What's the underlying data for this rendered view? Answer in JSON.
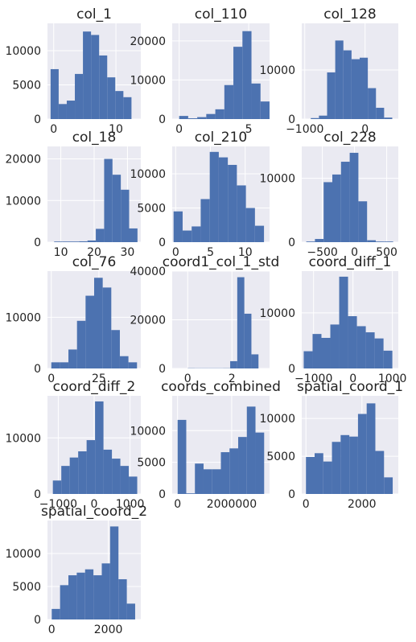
{
  "chart_data": [
    {
      "type": "bar",
      "title": "col_1",
      "x_range": [
        -1,
        14
      ],
      "ylim": [
        0,
        14000
      ],
      "xticks": [
        {
          "value": 0,
          "label": "0"
        },
        {
          "value": 10,
          "label": "10"
        }
      ],
      "yticks": [
        {
          "value": 0,
          "label": "0"
        },
        {
          "value": 5000,
          "label": "5000"
        },
        {
          "value": 10000,
          "label": "10000"
        }
      ],
      "bins": [
        {
          "x0": -0.5,
          "x1": 0.8,
          "count": 7300
        },
        {
          "x0": 0.8,
          "x1": 2.1,
          "count": 2200
        },
        {
          "x0": 2.1,
          "x1": 3.4,
          "count": 2700
        },
        {
          "x0": 3.4,
          "x1": 4.7,
          "count": 6600
        },
        {
          "x0": 4.7,
          "x1": 6.0,
          "count": 12800
        },
        {
          "x0": 6.0,
          "x1": 7.3,
          "count": 12300
        },
        {
          "x0": 7.3,
          "x1": 8.6,
          "count": 9300
        },
        {
          "x0": 8.6,
          "x1": 9.9,
          "count": 6100
        },
        {
          "x0": 9.9,
          "x1": 11.2,
          "count": 4100
        },
        {
          "x0": 11.2,
          "x1": 12.5,
          "count": 3200
        }
      ]
    },
    {
      "type": "bar",
      "title": "col_110",
      "x_range": [
        -0.5,
        6.5
      ],
      "ylim": [
        0,
        24500
      ],
      "xticks": [
        {
          "value": 0,
          "label": "0"
        },
        {
          "value": 5,
          "label": "5"
        }
      ],
      "yticks": [
        {
          "value": 0,
          "label": "0"
        },
        {
          "value": 10000,
          "label": "10000"
        },
        {
          "value": 20000,
          "label": "20000"
        }
      ],
      "bins": [
        {
          "x0": 0,
          "x1": 0.65,
          "count": 800
        },
        {
          "x0": 0.65,
          "x1": 1.3,
          "count": 200
        },
        {
          "x0": 1.3,
          "x1": 1.95,
          "count": 500
        },
        {
          "x0": 1.95,
          "x1": 2.6,
          "count": 1300
        },
        {
          "x0": 2.6,
          "x1": 3.25,
          "count": 2500
        },
        {
          "x0": 3.25,
          "x1": 3.9,
          "count": 8700
        },
        {
          "x0": 3.9,
          "x1": 4.55,
          "count": 18500
        },
        {
          "x0": 4.55,
          "x1": 5.2,
          "count": 22500
        },
        {
          "x0": 5.2,
          "x1": 5.85,
          "count": 9100
        },
        {
          "x0": 5.85,
          "x1": 6.5,
          "count": 4500
        }
      ]
    },
    {
      "type": "bar",
      "title": "col_128",
      "x_range": [
        -1050,
        550
      ],
      "ylim": [
        0,
        19500
      ],
      "xticks": [
        {
          "value": -1000,
          "label": "−1000"
        },
        {
          "value": 0,
          "label": "0"
        }
      ],
      "yticks": [
        {
          "value": 0,
          "label": "0"
        },
        {
          "value": 10000,
          "label": "10000"
        }
      ],
      "bins": [
        {
          "x0": -900,
          "x1": -765,
          "count": 200
        },
        {
          "x0": -765,
          "x1": -630,
          "count": 700
        },
        {
          "x0": -630,
          "x1": -495,
          "count": 9500
        },
        {
          "x0": -495,
          "x1": -360,
          "count": 16000
        },
        {
          "x0": -360,
          "x1": -225,
          "count": 14000
        },
        {
          "x0": -225,
          "x1": -90,
          "count": 12200
        },
        {
          "x0": -90,
          "x1": 45,
          "count": 12500
        },
        {
          "x0": 45,
          "x1": 180,
          "count": 6300
        },
        {
          "x0": 180,
          "x1": 315,
          "count": 2300
        },
        {
          "x0": 315,
          "x1": 450,
          "count": 300
        }
      ]
    },
    {
      "type": "bar",
      "title": "col_18",
      "x_range": [
        6,
        34
      ],
      "ylim": [
        0,
        23000
      ],
      "xticks": [
        {
          "value": 10,
          "label": "10"
        },
        {
          "value": 20,
          "label": "20"
        },
        {
          "value": 30,
          "label": "30"
        }
      ],
      "yticks": [
        {
          "value": 0,
          "label": "0"
        },
        {
          "value": 10000,
          "label": "10000"
        },
        {
          "value": 20000,
          "label": "20000"
        }
      ],
      "bins": [
        {
          "x0": 8,
          "x1": 10.5,
          "count": 150
        },
        {
          "x0": 10.5,
          "x1": 13,
          "count": 150
        },
        {
          "x0": 13,
          "x1": 15.5,
          "count": 150
        },
        {
          "x0": 15.5,
          "x1": 18,
          "count": 200
        },
        {
          "x0": 18,
          "x1": 20.5,
          "count": 400
        },
        {
          "x0": 20.5,
          "x1": 23,
          "count": 3200
        },
        {
          "x0": 23,
          "x1": 25.5,
          "count": 20000
        },
        {
          "x0": 25.5,
          "x1": 28,
          "count": 16200
        },
        {
          "x0": 28,
          "x1": 30.5,
          "count": 12600
        },
        {
          "x0": 30.5,
          "x1": 33,
          "count": 3300
        }
      ]
    },
    {
      "type": "bar",
      "title": "col_210",
      "x_range": [
        -0.5,
        13.5
      ],
      "ylim": [
        0,
        14000
      ],
      "xticks": [
        {
          "value": 0,
          "label": "0"
        },
        {
          "value": 5,
          "label": "5"
        },
        {
          "value": 10,
          "label": "10"
        }
      ],
      "yticks": [
        {
          "value": 0,
          "label": "0"
        },
        {
          "value": 5000,
          "label": "5000"
        },
        {
          "value": 10000,
          "label": "10000"
        }
      ],
      "bins": [
        {
          "x0": -0.3,
          "x1": 1,
          "count": 4500
        },
        {
          "x0": 1,
          "x1": 2.3,
          "count": 1700
        },
        {
          "x0": 2.3,
          "x1": 3.6,
          "count": 2300
        },
        {
          "x0": 3.6,
          "x1": 4.9,
          "count": 6300
        },
        {
          "x0": 4.9,
          "x1": 6.2,
          "count": 13200
        },
        {
          "x0": 6.2,
          "x1": 7.5,
          "count": 12400
        },
        {
          "x0": 7.5,
          "x1": 8.8,
          "count": 11300
        },
        {
          "x0": 8.8,
          "x1": 10.1,
          "count": 8300
        },
        {
          "x0": 10.1,
          "x1": 11.4,
          "count": 5000
        },
        {
          "x0": 11.4,
          "x1": 12.7,
          "count": 2400
        }
      ]
    },
    {
      "type": "bar",
      "title": "col_228",
      "x_range": [
        -820,
        680
      ],
      "ylim": [
        0,
        15000
      ],
      "xticks": [
        {
          "value": -500,
          "label": "−500"
        },
        {
          "value": 0,
          "label": "0"
        },
        {
          "value": 500,
          "label": "500"
        }
      ],
      "yticks": [
        {
          "value": 0,
          "label": "0"
        },
        {
          "value": 10000,
          "label": "10000"
        }
      ],
      "bins": [
        {
          "x0": -750,
          "x1": -615,
          "count": 100
        },
        {
          "x0": -615,
          "x1": -480,
          "count": 500
        },
        {
          "x0": -480,
          "x1": -345,
          "count": 9400
        },
        {
          "x0": -345,
          "x1": -210,
          "count": 10600
        },
        {
          "x0": -210,
          "x1": -75,
          "count": 12600
        },
        {
          "x0": -75,
          "x1": 60,
          "count": 14000
        },
        {
          "x0": 60,
          "x1": 195,
          "count": 6400
        },
        {
          "x0": 195,
          "x1": 330,
          "count": 300
        },
        {
          "x0": 330,
          "x1": 465,
          "count": 100
        },
        {
          "x0": 465,
          "x1": 600,
          "count": 100
        }
      ]
    },
    {
      "type": "bar",
      "title": "col_76",
      "x_range": [
        -2,
        47
      ],
      "ylim": [
        0,
        19000
      ],
      "xticks": [
        {
          "value": 0,
          "label": "0"
        },
        {
          "value": 25,
          "label": "25"
        }
      ],
      "yticks": [
        {
          "value": 0,
          "label": "0"
        },
        {
          "value": 10000,
          "label": "10000"
        }
      ],
      "bins": [
        {
          "x0": 0,
          "x1": 4.5,
          "count": 1200
        },
        {
          "x0": 4.5,
          "x1": 9,
          "count": 1200
        },
        {
          "x0": 9,
          "x1": 13.5,
          "count": 3700
        },
        {
          "x0": 13.5,
          "x1": 18,
          "count": 9300
        },
        {
          "x0": 18,
          "x1": 22.5,
          "count": 14200
        },
        {
          "x0": 22.5,
          "x1": 27,
          "count": 17700
        },
        {
          "x0": 27,
          "x1": 31.5,
          "count": 15800
        },
        {
          "x0": 31.5,
          "x1": 36,
          "count": 7500
        },
        {
          "x0": 36,
          "x1": 40.5,
          "count": 2400
        },
        {
          "x0": 40.5,
          "x1": 45,
          "count": 1200
        }
      ]
    },
    {
      "type": "bar",
      "title": "coord1_col_1_std",
      "x_range": [
        -0.7,
        3.7
      ],
      "ylim": [
        0,
        40000
      ],
      "xticks": [
        {
          "value": 0,
          "label": "0"
        },
        {
          "value": 2,
          "label": "2"
        }
      ],
      "yticks": [
        {
          "value": 0,
          "label": "0"
        },
        {
          "value": 20000,
          "label": "20000"
        },
        {
          "value": 40000,
          "label": "40000"
        }
      ],
      "bins": [
        {
          "x0": 0,
          "x1": 0.32,
          "count": 100
        },
        {
          "x0": 0.32,
          "x1": 0.64,
          "count": 80
        },
        {
          "x0": 0.64,
          "x1": 0.96,
          "count": 80
        },
        {
          "x0": 0.96,
          "x1": 1.28,
          "count": 80
        },
        {
          "x0": 1.28,
          "x1": 1.6,
          "count": 80
        },
        {
          "x0": 1.6,
          "x1": 1.92,
          "count": 100
        },
        {
          "x0": 1.92,
          "x1": 2.24,
          "count": 3000
        },
        {
          "x0": 2.24,
          "x1": 2.56,
          "count": 37500
        },
        {
          "x0": 2.56,
          "x1": 2.88,
          "count": 22500
        },
        {
          "x0": 2.88,
          "x1": 3.2,
          "count": 5800
        }
      ]
    },
    {
      "type": "bar",
      "title": "coord_diff_1",
      "x_range": [
        -1300,
        1150
      ],
      "ylim": [
        0,
        17500
      ],
      "xticks": [
        {
          "value": -1000,
          "label": "−1000"
        },
        {
          "value": 0,
          "label": "0"
        },
        {
          "value": 1000,
          "label": "1000"
        }
      ],
      "yticks": [
        {
          "value": 0,
          "label": "0"
        },
        {
          "value": 10000,
          "label": "10000"
        }
      ],
      "bins": [
        {
          "x0": -1250,
          "x1": -1025,
          "count": 3100
        },
        {
          "x0": -1025,
          "x1": -800,
          "count": 6200
        },
        {
          "x0": -800,
          "x1": -575,
          "count": 5500
        },
        {
          "x0": -575,
          "x1": -350,
          "count": 7900
        },
        {
          "x0": -350,
          "x1": -125,
          "count": 16500
        },
        {
          "x0": -125,
          "x1": 100,
          "count": 9400
        },
        {
          "x0": 100,
          "x1": 325,
          "count": 7600
        },
        {
          "x0": 325,
          "x1": 550,
          "count": 6500
        },
        {
          "x0": 550,
          "x1": 775,
          "count": 5400
        },
        {
          "x0": 775,
          "x1": 1000,
          "count": 3200
        }
      ]
    },
    {
      "type": "bar",
      "title": "coord_diff_2",
      "x_range": [
        -1300,
        1300
      ],
      "ylim": [
        0,
        17500
      ],
      "xticks": [
        {
          "value": -1000,
          "label": "−1000"
        },
        {
          "value": 0,
          "label": "0"
        },
        {
          "value": 1000,
          "label": "1000"
        }
      ],
      "yticks": [
        {
          "value": 0,
          "label": "0"
        },
        {
          "value": 10000,
          "label": "10000"
        }
      ],
      "bins": [
        {
          "x0": -1150,
          "x1": -915,
          "count": 2400
        },
        {
          "x0": -915,
          "x1": -680,
          "count": 5000
        },
        {
          "x0": -680,
          "x1": -445,
          "count": 6500
        },
        {
          "x0": -445,
          "x1": -210,
          "count": 7600
        },
        {
          "x0": -210,
          "x1": 25,
          "count": 9600
        },
        {
          "x0": 25,
          "x1": 260,
          "count": 16500
        },
        {
          "x0": 260,
          "x1": 495,
          "count": 7900
        },
        {
          "x0": 495,
          "x1": 730,
          "count": 6300
        },
        {
          "x0": 730,
          "x1": 965,
          "count": 5000
        },
        {
          "x0": 965,
          "x1": 1200,
          "count": 3100
        }
      ]
    },
    {
      "type": "bar",
      "title": "coords_combined",
      "x_range": [
        -200000,
        3400000
      ],
      "ylim": [
        0,
        15500
      ],
      "xticks": [
        {
          "value": 0,
          "label": "0"
        },
        {
          "value": 2000000,
          "label": "2000000"
        }
      ],
      "yticks": [
        {
          "value": 0,
          "label": "0"
        },
        {
          "value": 5000,
          "label": "5000"
        },
        {
          "value": 10000,
          "label": "10000"
        }
      ],
      "bins": [
        {
          "x0": 0,
          "x1": 320000,
          "count": 11700
        },
        {
          "x0": 320000,
          "x1": 640000,
          "count": 100
        },
        {
          "x0": 640000,
          "x1": 960000,
          "count": 4800
        },
        {
          "x0": 960000,
          "x1": 1280000,
          "count": 3900
        },
        {
          "x0": 1280000,
          "x1": 1600000,
          "count": 3900
        },
        {
          "x0": 1600000,
          "x1": 1920000,
          "count": 6600
        },
        {
          "x0": 1920000,
          "x1": 2240000,
          "count": 7200
        },
        {
          "x0": 2240000,
          "x1": 2560000,
          "count": 9000
        },
        {
          "x0": 2560000,
          "x1": 2880000,
          "count": 13800
        },
        {
          "x0": 2880000,
          "x1": 3200000,
          "count": 9700
        }
      ]
    },
    {
      "type": "bar",
      "title": "spatial_coord_1",
      "x_range": [
        -150,
        3300
      ],
      "ylim": [
        0,
        13000
      ],
      "xticks": [
        {
          "value": 0,
          "label": "0"
        },
        {
          "value": 2000,
          "label": "2000"
        }
      ],
      "yticks": [
        {
          "value": 0,
          "label": "0"
        },
        {
          "value": 5000,
          "label": "5000"
        },
        {
          "value": 10000,
          "label": "10000"
        }
      ],
      "bins": [
        {
          "x0": 0,
          "x1": 310,
          "count": 4900
        },
        {
          "x0": 310,
          "x1": 620,
          "count": 5400
        },
        {
          "x0": 620,
          "x1": 930,
          "count": 4300
        },
        {
          "x0": 930,
          "x1": 1240,
          "count": 6900
        },
        {
          "x0": 1240,
          "x1": 1550,
          "count": 7800
        },
        {
          "x0": 1550,
          "x1": 1860,
          "count": 7600
        },
        {
          "x0": 1860,
          "x1": 2170,
          "count": 10600
        },
        {
          "x0": 2170,
          "x1": 2480,
          "count": 12000
        },
        {
          "x0": 2480,
          "x1": 2790,
          "count": 5700
        },
        {
          "x0": 2790,
          "x1": 3100,
          "count": 2200
        }
      ]
    },
    {
      "type": "bar",
      "title": "spatial_coord_2",
      "x_range": [
        -150,
        3150
      ],
      "ylim": [
        0,
        15000
      ],
      "xticks": [
        {
          "value": 0,
          "label": "0"
        },
        {
          "value": 2000,
          "label": "2000"
        }
      ],
      "yticks": [
        {
          "value": 0,
          "label": "0"
        },
        {
          "value": 5000,
          "label": "5000"
        },
        {
          "value": 10000,
          "label": "10000"
        }
      ],
      "bins": [
        {
          "x0": 0,
          "x1": 295,
          "count": 1600
        },
        {
          "x0": 295,
          "x1": 590,
          "count": 5200
        },
        {
          "x0": 590,
          "x1": 885,
          "count": 6700
        },
        {
          "x0": 885,
          "x1": 1180,
          "count": 7100
        },
        {
          "x0": 1180,
          "x1": 1475,
          "count": 7600
        },
        {
          "x0": 1475,
          "x1": 1770,
          "count": 6700
        },
        {
          "x0": 1770,
          "x1": 2065,
          "count": 8500
        },
        {
          "x0": 2065,
          "x1": 2360,
          "count": 14100
        },
        {
          "x0": 2360,
          "x1": 2655,
          "count": 6100
        },
        {
          "x0": 2655,
          "x1": 2950,
          "count": 2400
        }
      ]
    }
  ]
}
